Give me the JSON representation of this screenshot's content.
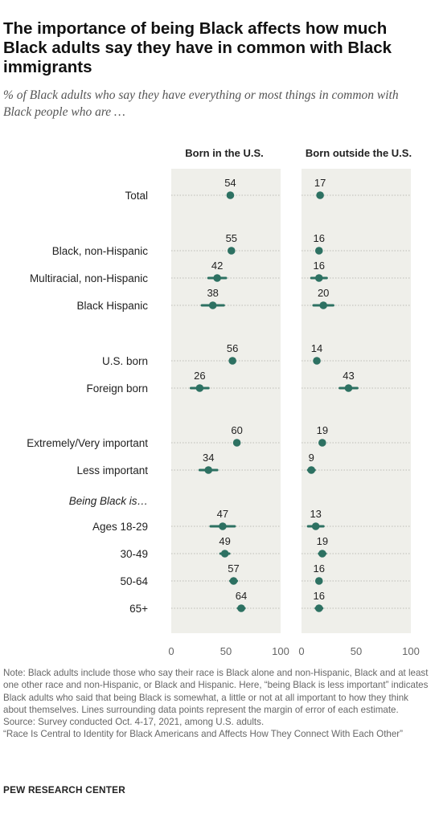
{
  "title": "The importance of being Black affects how much Black adults say they have in common with Black immigrants",
  "subtitle": "% of Black adults who say they have everything or most things in common with Black people who are …",
  "chart_data": {
    "type": "dot-plot",
    "panels": [
      "Born in the U.S.",
      "Born outside the U.S."
    ],
    "xlim": [
      0,
      100
    ],
    "ticks": [
      0,
      50,
      100
    ],
    "grid": false,
    "colors": {
      "point": "#2d7162",
      "panel_bg": "#efefea",
      "row_line": "#bdbdb5"
    },
    "section_labels": [
      {
        "before_row": 8,
        "label": "Being Black is…"
      }
    ],
    "rows": [
      {
        "label": "Total",
        "us": 54,
        "us_err": 2,
        "abroad": 17,
        "abroad_err": 2
      },
      {
        "label": "Black, non-Hispanic",
        "us": 55,
        "us_err": 2,
        "abroad": 16,
        "abroad_err": 2
      },
      {
        "label": "Multiracial, non-Hispanic",
        "us": 42,
        "us_err": 8,
        "abroad": 16,
        "abroad_err": 7
      },
      {
        "label": "Black Hispanic",
        "us": 38,
        "us_err": 10,
        "abroad": 20,
        "abroad_err": 9
      },
      {
        "label": "U.S. born",
        "us": 56,
        "us_err": 2,
        "abroad": 14,
        "abroad_err": 2
      },
      {
        "label": "Foreign born",
        "us": 26,
        "us_err": 8,
        "abroad": 43,
        "abroad_err": 8
      },
      {
        "label": "Extremely/Very important",
        "us": 60,
        "us_err": 2,
        "abroad": 19,
        "abroad_err": 2
      },
      {
        "label": "Less important",
        "us": 34,
        "us_err": 8,
        "abroad": 9,
        "abroad_err": 3
      },
      {
        "label": "Ages 18-29",
        "us": 47,
        "us_err": 11,
        "abroad": 13,
        "abroad_err": 7
      },
      {
        "label": "30-49",
        "us": 49,
        "us_err": 4,
        "abroad": 19,
        "abroad_err": 3
      },
      {
        "label": "50-64",
        "us": 57,
        "us_err": 3,
        "abroad": 16,
        "abroad_err": 2
      },
      {
        "label": "65+",
        "us": 64,
        "us_err": 3,
        "abroad": 16,
        "abroad_err": 3
      }
    ]
  },
  "note": "Note: Black adults include those who say their race is Black alone and non-Hispanic, Black and at least one other race and non-Hispanic, or Black and Hispanic. Here, “being Black is less important” indicates Black adults who said that being Black is somewhat, a little or not at all important to how they think about themselves. Lines surrounding data points represent the margin of error of each estimate.",
  "source": "Source: Survey conducted Oct. 4-17, 2021, among U.S. adults.",
  "report": "“Race Is Central to Identity for Black Americans and Affects How They Connect With Each Other”",
  "brand": "PEW RESEARCH CENTER"
}
